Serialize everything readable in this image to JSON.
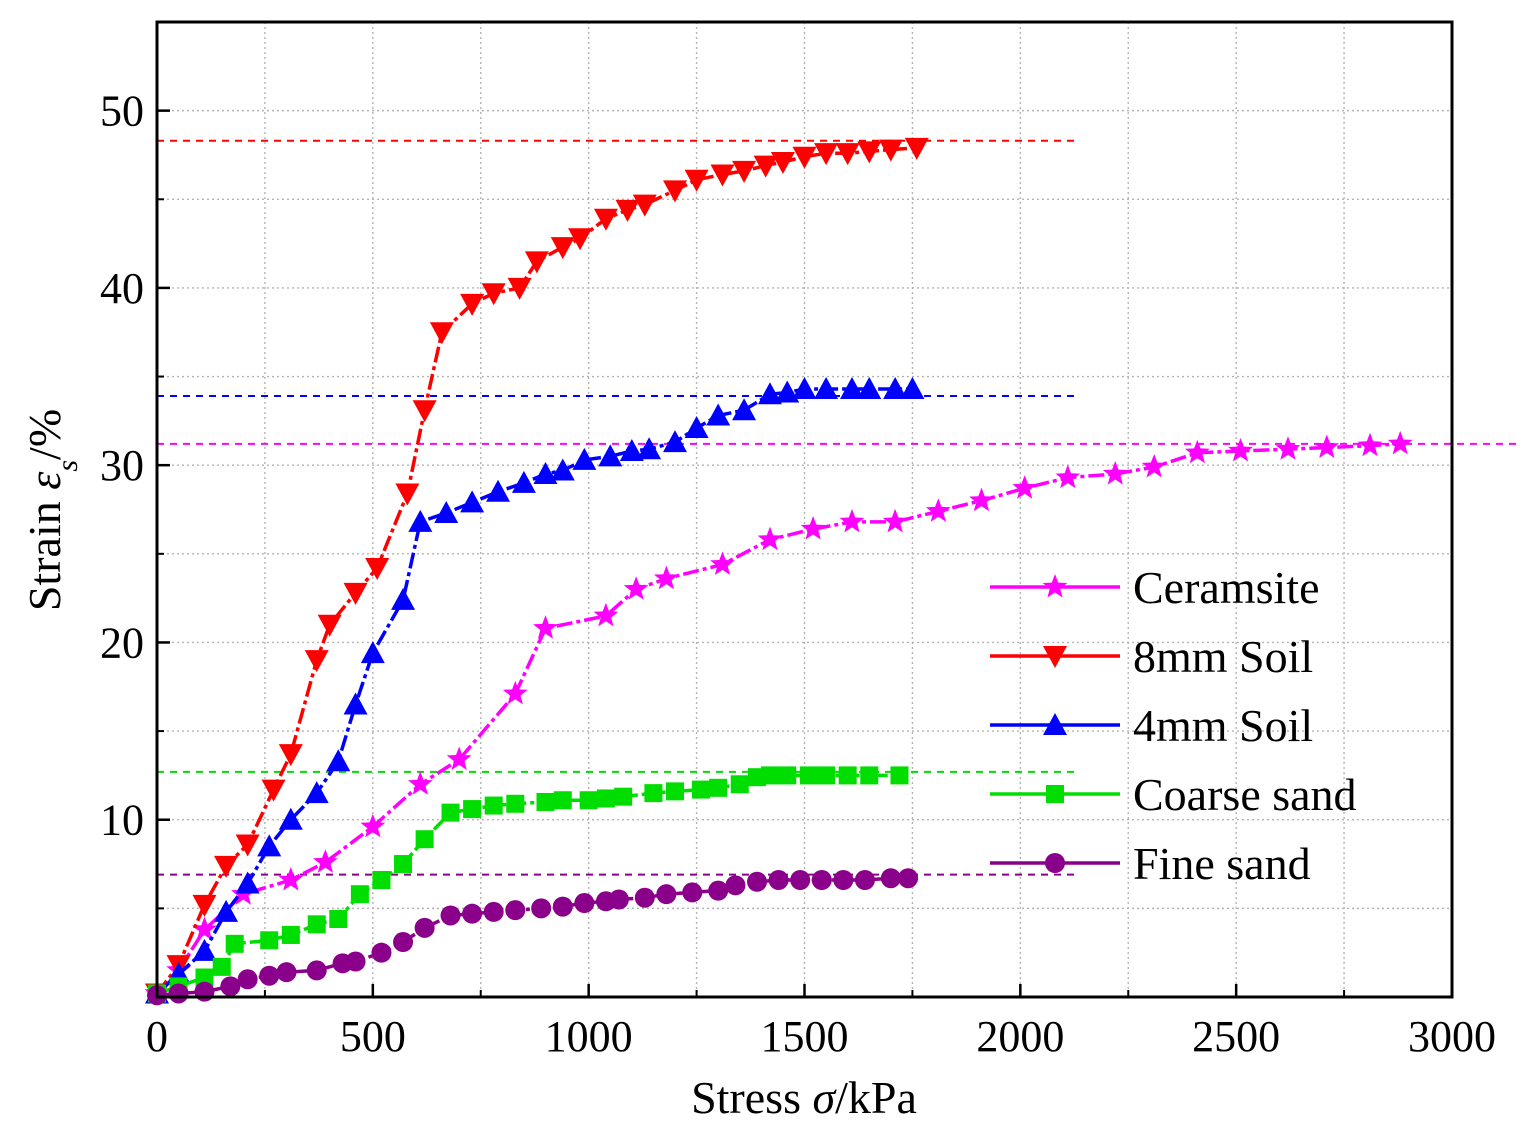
{
  "chart_data": {
    "type": "line",
    "title": "",
    "xlabel_prefix": "Stress ",
    "xlabel_symbol": "σ",
    "xlabel_suffix": "/kPa",
    "ylabel_prefix": "Strain ",
    "ylabel_symbol": "ε",
    "ylabel_subscript": "s",
    "ylabel_suffix": "/%",
    "xlim": [
      0,
      3000
    ],
    "ylim": [
      0,
      55
    ],
    "xticks": [
      0,
      500,
      1000,
      1500,
      2000,
      2500,
      3000
    ],
    "yticks": [
      10,
      20,
      30,
      40,
      50
    ],
    "grid": true,
    "legend_position": "bottom-right",
    "series": [
      {
        "name": "Ceramsite",
        "color": "#ff00ff",
        "marker": "star",
        "x": [
          0,
          50,
          110,
          200,
          310,
          390,
          500,
          610,
          700,
          830,
          900,
          1040,
          1110,
          1180,
          1310,
          1420,
          1520,
          1610,
          1710,
          1810,
          1910,
          2010,
          2110,
          2220,
          2310,
          2410,
          2510,
          2620,
          2710,
          2810,
          2880
        ],
        "y": [
          0.2,
          1.5,
          3.8,
          5.8,
          6.6,
          7.6,
          9.6,
          12.0,
          13.4,
          17.1,
          20.8,
          21.5,
          23.0,
          23.6,
          24.4,
          25.8,
          26.4,
          26.8,
          26.8,
          27.4,
          28.0,
          28.7,
          29.3,
          29.5,
          29.9,
          30.7,
          30.8,
          30.9,
          31.0,
          31.1,
          31.2
        ],
        "ref_line": 31.2
      },
      {
        "name": "8mm Soil",
        "color": "#ff0000",
        "marker": "triangle-down",
        "x": [
          0,
          50,
          110,
          160,
          210,
          270,
          310,
          370,
          400,
          460,
          510,
          580,
          620,
          660,
          730,
          780,
          840,
          880,
          940,
          980,
          1040,
          1090,
          1130,
          1200,
          1250,
          1310,
          1360,
          1410,
          1450,
          1500,
          1550,
          1600,
          1650,
          1700,
          1760
        ],
        "y": [
          0.2,
          1.8,
          5.2,
          7.4,
          8.6,
          11.7,
          13.7,
          19.0,
          21.0,
          22.8,
          24.2,
          28.4,
          33.1,
          37.5,
          39.1,
          39.7,
          40.0,
          41.5,
          42.3,
          42.8,
          43.9,
          44.4,
          44.7,
          45.5,
          46.1,
          46.4,
          46.6,
          46.9,
          47.1,
          47.4,
          47.6,
          47.6,
          47.7,
          47.8,
          47.9
        ],
        "ref_line": 48.3
      },
      {
        "name": "4mm Soil",
        "color": "#0000ff",
        "marker": "triangle-up",
        "x": [
          0,
          50,
          110,
          160,
          210,
          260,
          310,
          370,
          420,
          460,
          500,
          570,
          610,
          670,
          730,
          790,
          850,
          900,
          940,
          990,
          1050,
          1100,
          1140,
          1200,
          1250,
          1300,
          1360,
          1420,
          1460,
          1500,
          1550,
          1610,
          1650,
          1710,
          1750
        ],
        "y": [
          0.2,
          1.3,
          2.6,
          4.8,
          6.4,
          8.5,
          10.0,
          11.5,
          13.3,
          16.5,
          19.4,
          22.4,
          26.8,
          27.3,
          27.9,
          28.5,
          29.0,
          29.5,
          29.7,
          30.3,
          30.5,
          30.8,
          30.9,
          31.3,
          32.1,
          32.8,
          33.1,
          34.0,
          34.1,
          34.3,
          34.3,
          34.3,
          34.3,
          34.3,
          34.3
        ],
        "ref_line": 33.9
      },
      {
        "name": "Coarse sand",
        "color": "#00dd00",
        "marker": "square",
        "x": [
          0,
          50,
          110,
          150,
          180,
          260,
          310,
          370,
          420,
          470,
          520,
          570,
          620,
          680,
          730,
          780,
          830,
          900,
          940,
          1000,
          1040,
          1080,
          1150,
          1200,
          1260,
          1300,
          1350,
          1390,
          1420,
          1460,
          1510,
          1550,
          1600,
          1650,
          1720
        ],
        "y": [
          0.2,
          0.6,
          1.1,
          1.7,
          3.0,
          3.2,
          3.5,
          4.1,
          4.4,
          5.8,
          6.6,
          7.5,
          8.9,
          10.4,
          10.6,
          10.8,
          10.9,
          11.0,
          11.1,
          11.1,
          11.2,
          11.3,
          11.5,
          11.6,
          11.7,
          11.8,
          12.0,
          12.4,
          12.5,
          12.5,
          12.5,
          12.5,
          12.5,
          12.5,
          12.5
        ],
        "ref_line": 12.7
      },
      {
        "name": "Fine sand",
        "color": "#8b008b",
        "marker": "circle",
        "x": [
          0,
          50,
          110,
          170,
          210,
          260,
          300,
          370,
          430,
          460,
          520,
          570,
          620,
          680,
          730,
          780,
          830,
          890,
          940,
          990,
          1040,
          1070,
          1130,
          1180,
          1240,
          1300,
          1340,
          1390,
          1440,
          1490,
          1540,
          1590,
          1640,
          1700,
          1740
        ],
        "y": [
          0.1,
          0.2,
          0.3,
          0.6,
          1.0,
          1.2,
          1.4,
          1.5,
          1.9,
          2.0,
          2.5,
          3.1,
          3.9,
          4.6,
          4.7,
          4.8,
          4.9,
          5.0,
          5.1,
          5.3,
          5.4,
          5.5,
          5.6,
          5.8,
          5.9,
          6.0,
          6.3,
          6.5,
          6.6,
          6.6,
          6.6,
          6.6,
          6.6,
          6.7,
          6.7
        ],
        "ref_line": 6.9
      }
    ]
  }
}
